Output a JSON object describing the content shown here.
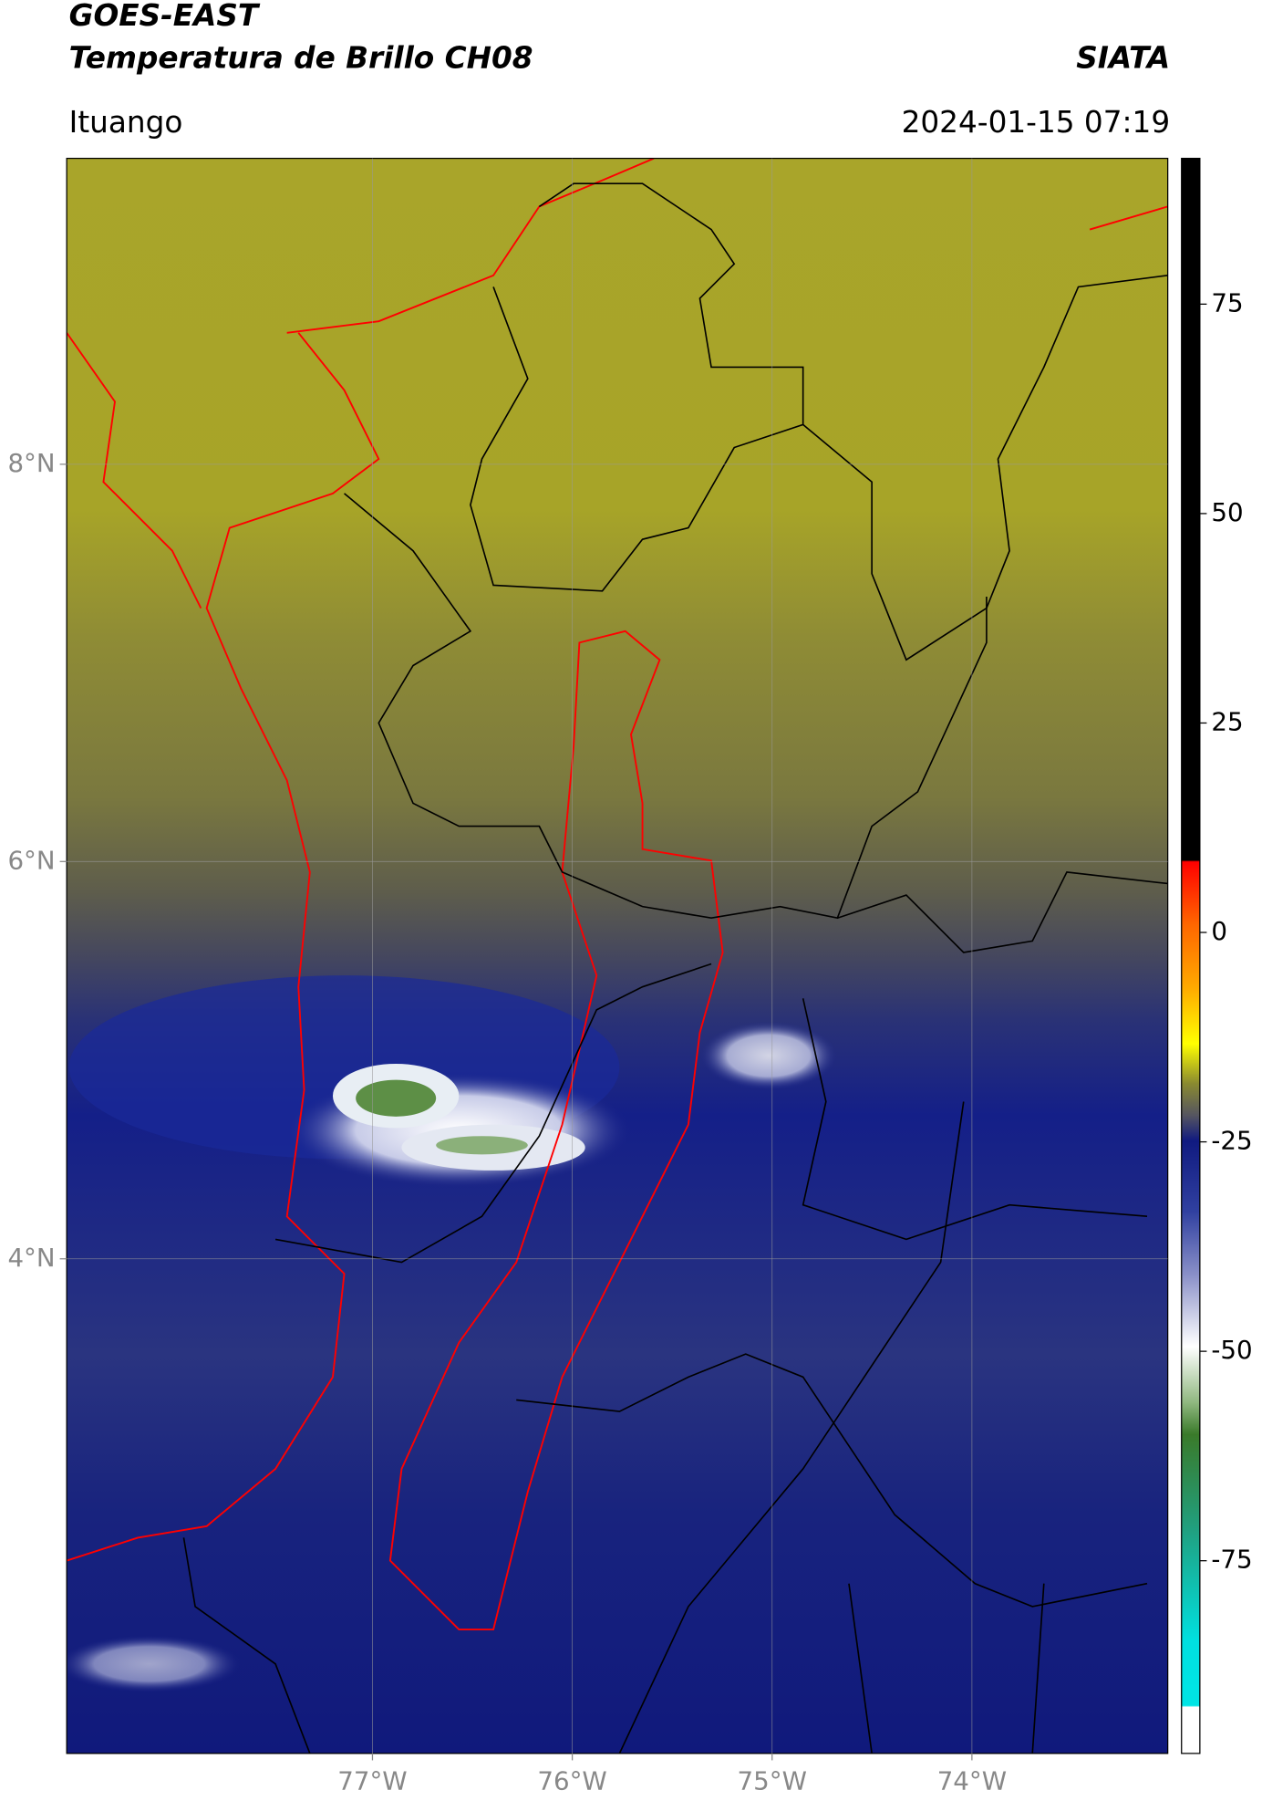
{
  "header": {
    "title": "GOES-EAST",
    "subtitle": "Temperatura de Brillo CH08",
    "brand": "SIATA",
    "location": "Ituango",
    "datetime": "2024-01-15 07:19"
  },
  "chart_data": {
    "type": "map",
    "xlim": [
      -78.53,
      -73.02
    ],
    "xticks": [
      {
        "value": -77,
        "label": "77°W"
      },
      {
        "value": -76,
        "label": "76°W"
      },
      {
        "value": -75,
        "label": "75°W"
      },
      {
        "value": -74,
        "label": "74°W"
      }
    ],
    "ylim": [
      1.51,
      9.54
    ],
    "yticks": [
      {
        "value": 4,
        "label": "4°N"
      },
      {
        "value": 6,
        "label": "6°N"
      },
      {
        "value": 8,
        "label": "8°N"
      }
    ],
    "grid": true,
    "colorbar": {
      "lim": [
        -98,
        92.4
      ],
      "ticks": [
        -75,
        -50,
        -25,
        0,
        25,
        50,
        75
      ]
    }
  }
}
